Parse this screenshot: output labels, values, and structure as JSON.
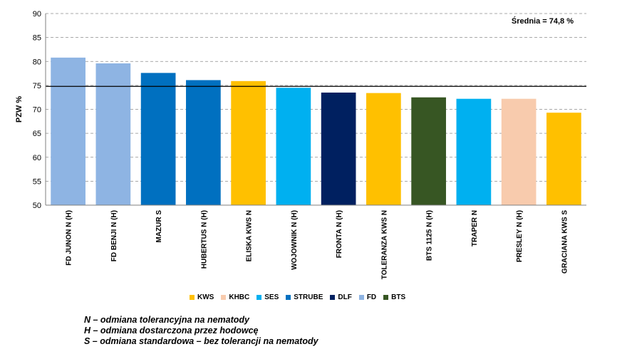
{
  "chart_data": {
    "type": "bar",
    "ylabel": "PZW %",
    "ylim": [
      50,
      90
    ],
    "yticks": [
      50,
      55,
      60,
      65,
      70,
      75,
      80,
      85,
      90
    ],
    "grid": true,
    "categories": [
      "FD JUNON N (H)",
      "FD BENJI N (H)",
      "MAZUR S",
      "HUBERTUS N (H)",
      "ELISKA KWS N",
      "WOJOWNIK N (H)",
      "FRONTA N (H)",
      "TOLERANZA KWS N",
      "BTS 1125 N (H)",
      "TRAPER N",
      "PRESLEY N (H)",
      "GRACIANA KWS S"
    ],
    "values": [
      80.8,
      79.6,
      77.6,
      76.1,
      75.9,
      74.5,
      73.5,
      73.4,
      72.5,
      72.2,
      72.2,
      69.3
    ],
    "breeders": [
      "FD",
      "FD",
      "STRUBE",
      "STRUBE",
      "KWS",
      "SES",
      "DLF",
      "KWS",
      "BTS",
      "SES",
      "KHBC",
      "KWS"
    ],
    "average": {
      "value": 74.8,
      "label": "Średnia = 74,8 %"
    },
    "legend_placement": "bottom",
    "legend": [
      {
        "name": "KWS",
        "color": "#FFC000"
      },
      {
        "name": "KHBC",
        "color": "#F8CBAD"
      },
      {
        "name": "SES",
        "color": "#00B0F0"
      },
      {
        "name": "STRUBE",
        "color": "#0070C0"
      },
      {
        "name": "DLF",
        "color": "#002060"
      },
      {
        "name": "FD",
        "color": "#8EB4E3"
      },
      {
        "name": "BTS",
        "color": "#375623"
      }
    ]
  },
  "notes": [
    "N – odmiana tolerancyjna na nematody",
    "H – odmiana dostarczona przez hodowcę",
    "S – odmiana standardowa – bez tolerancji na nematody"
  ]
}
